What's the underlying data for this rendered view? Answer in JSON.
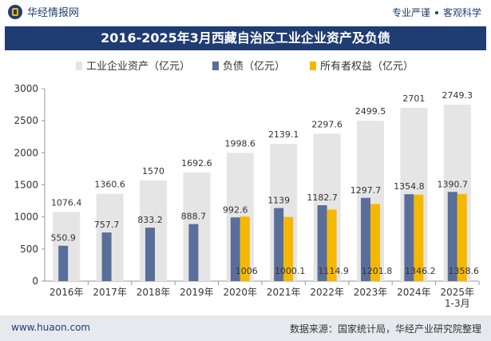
{
  "header": {
    "brand_name": "华经情报网",
    "slogan_left": "专业严谨",
    "slogan_right": "客观科学"
  },
  "footer": {
    "website": "www.huaon.com",
    "source": "数据来源：国家统计局，华经产业研究院整理"
  },
  "colors": {
    "assets": "#e5e5e5",
    "liabilities": "#5a6e9a",
    "equity": "#f5b800",
    "title_bg": "#1f3c73"
  },
  "chart_data": {
    "type": "bar",
    "title": "2016-2025年3月西藏自治区工业企业资产及负债",
    "categories": [
      "2016年",
      "2017年",
      "2018年",
      "2019年",
      "2020年",
      "2021年",
      "2022年",
      "2023年",
      "2024年",
      "2025年\n1-3月"
    ],
    "series": [
      {
        "name": "工业企业资产（亿元）",
        "values": [
          1076.4,
          1360.6,
          1570,
          1692.6,
          1998.6,
          2139.1,
          2297.6,
          2499.5,
          2701,
          2749.3
        ]
      },
      {
        "name": "负债（亿元）",
        "values": [
          550.9,
          757.7,
          833.2,
          888.7,
          992.6,
          1139,
          1182.7,
          1297.7,
          1354.8,
          1390.7
        ]
      },
      {
        "name": "所有者权益（亿元）",
        "values": [
          null,
          null,
          null,
          null,
          1006,
          1000.1,
          1114.9,
          1201.8,
          1346.2,
          1358.6
        ]
      }
    ],
    "ylim": [
      0,
      3000
    ],
    "yticks": [
      0,
      500,
      1000,
      1500,
      2000,
      2500,
      3000
    ],
    "legend_position": "top",
    "grid": false
  }
}
